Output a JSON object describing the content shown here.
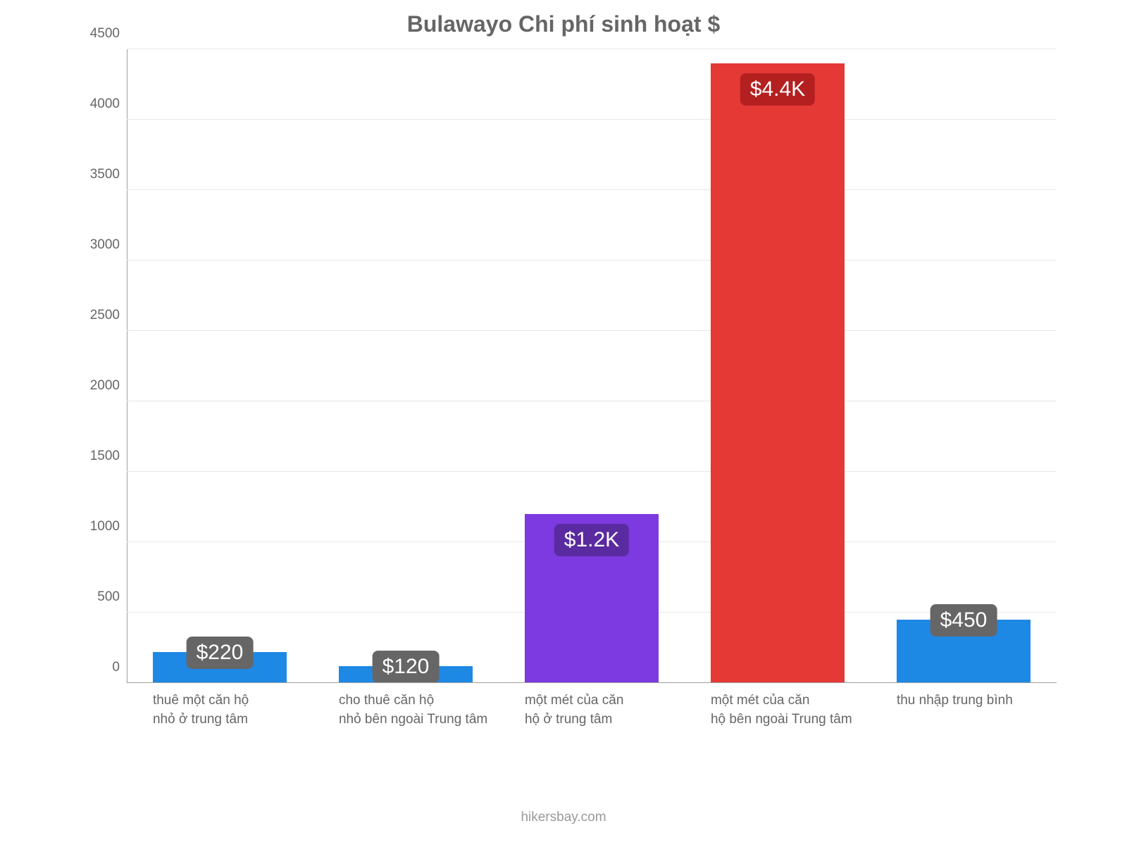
{
  "chart": {
    "type": "bar",
    "title": "Bulawayo Chi phí sinh hoạt $",
    "title_fontsize": 32,
    "title_color": "#666666",
    "background_color": "#ffffff",
    "grid_color": "#e8e8e8",
    "axis_color": "#a0a0a0",
    "label_color": "#666666",
    "label_fontsize": 19,
    "ylim": [
      0,
      4500
    ],
    "ytick_step": 500,
    "yticks": [
      0,
      500,
      1000,
      1500,
      2000,
      2500,
      3000,
      3500,
      4000,
      4500
    ],
    "bar_width_ratio": 0.72,
    "series": [
      {
        "label_lines": [
          "thuê một căn hộ",
          "nhỏ ở trung tâm"
        ],
        "value": 220,
        "display": "$220",
        "color": "#1e88e5",
        "badge_bg": "#666666"
      },
      {
        "label_lines": [
          "cho thuê căn hộ",
          "nhỏ bên ngoài Trung tâm"
        ],
        "value": 120,
        "display": "$120",
        "color": "#1e88e5",
        "badge_bg": "#666666"
      },
      {
        "label_lines": [
          "một mét của căn",
          "hộ ở trung tâm"
        ],
        "value": 1200,
        "display": "$1.2K",
        "color": "#7c3ae0",
        "badge_bg": "#5a2aa0"
      },
      {
        "label_lines": [
          "một mét của căn",
          "hộ bên ngoài Trung tâm"
        ],
        "value": 4400,
        "display": "$4.4K",
        "color": "#e53935",
        "badge_bg": "#b42020"
      },
      {
        "label_lines": [
          "thu nhập trung bình"
        ],
        "value": 450,
        "display": "$450",
        "color": "#1e88e5",
        "badge_bg": "#666666"
      }
    ],
    "attribution": "hikersbay.com"
  }
}
